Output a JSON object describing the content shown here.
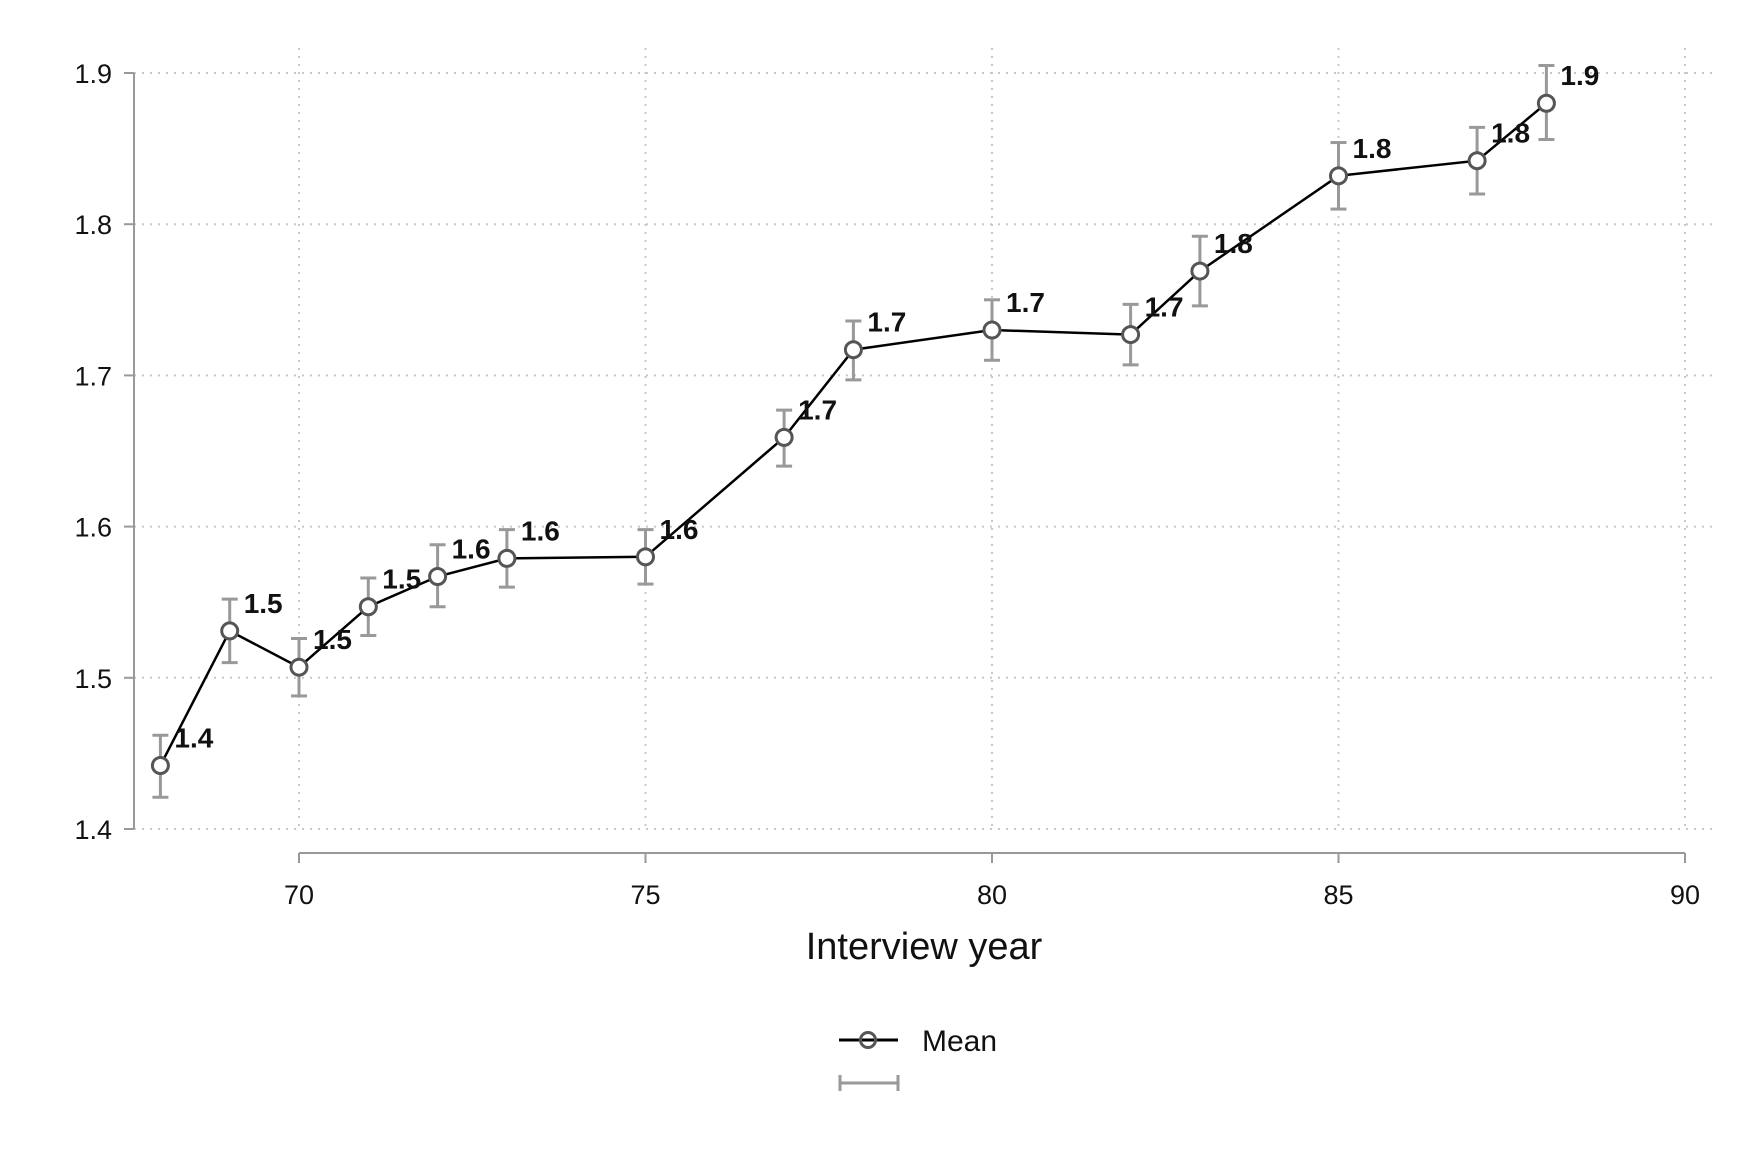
{
  "chart_data": {
    "type": "line",
    "title": "",
    "xlabel": "Interview year",
    "ylabel": "",
    "xlim": [
      68,
      90
    ],
    "ylim": [
      1.4,
      1.9
    ],
    "x_ticks": [
      "70",
      "75",
      "80",
      "85",
      "90"
    ],
    "y_ticks": [
      "1.4",
      "1.5",
      "1.6",
      "1.7",
      "1.8",
      "1.9"
    ],
    "grid": true,
    "legend_position": "bottom-center",
    "series": [
      {
        "name": "Mean",
        "color": "#000000",
        "marker_color": "#555555",
        "points": [
          {
            "x": 68,
            "y": 1.442,
            "lo": 1.421,
            "hi": 1.462,
            "label": "1.4"
          },
          {
            "x": 69,
            "y": 1.531,
            "lo": 1.51,
            "hi": 1.552,
            "label": "1.5"
          },
          {
            "x": 70,
            "y": 1.507,
            "lo": 1.488,
            "hi": 1.526,
            "label": "1.5"
          },
          {
            "x": 71,
            "y": 1.547,
            "lo": 1.528,
            "hi": 1.566,
            "label": "1.5"
          },
          {
            "x": 72,
            "y": 1.567,
            "lo": 1.547,
            "hi": 1.588,
            "label": "1.6"
          },
          {
            "x": 73,
            "y": 1.579,
            "lo": 1.56,
            "hi": 1.598,
            "label": "1.6"
          },
          {
            "x": 75,
            "y": 1.58,
            "lo": 1.562,
            "hi": 1.598,
            "label": "1.6"
          },
          {
            "x": 77,
            "y": 1.659,
            "lo": 1.64,
            "hi": 1.677,
            "label": "1.7"
          },
          {
            "x": 78,
            "y": 1.717,
            "lo": 1.697,
            "hi": 1.736,
            "label": "1.7"
          },
          {
            "x": 80,
            "y": 1.73,
            "lo": 1.71,
            "hi": 1.75,
            "label": "1.7"
          },
          {
            "x": 82,
            "y": 1.727,
            "lo": 1.707,
            "hi": 1.747,
            "label": "1.7"
          },
          {
            "x": 83,
            "y": 1.769,
            "lo": 1.746,
            "hi": 1.792,
            "label": "1.8"
          },
          {
            "x": 85,
            "y": 1.832,
            "lo": 1.81,
            "hi": 1.854,
            "label": "1.8"
          },
          {
            "x": 87,
            "y": 1.842,
            "lo": 1.82,
            "hi": 1.864,
            "label": "1.8"
          },
          {
            "x": 88,
            "y": 1.88,
            "lo": 1.856,
            "hi": 1.905,
            "label": "1.9"
          }
        ]
      }
    ],
    "errorbar_color": "#999999",
    "legend": [
      {
        "label": "Mean",
        "symbol": "line-circle"
      },
      {
        "label": "",
        "symbol": "errorbar"
      }
    ]
  }
}
